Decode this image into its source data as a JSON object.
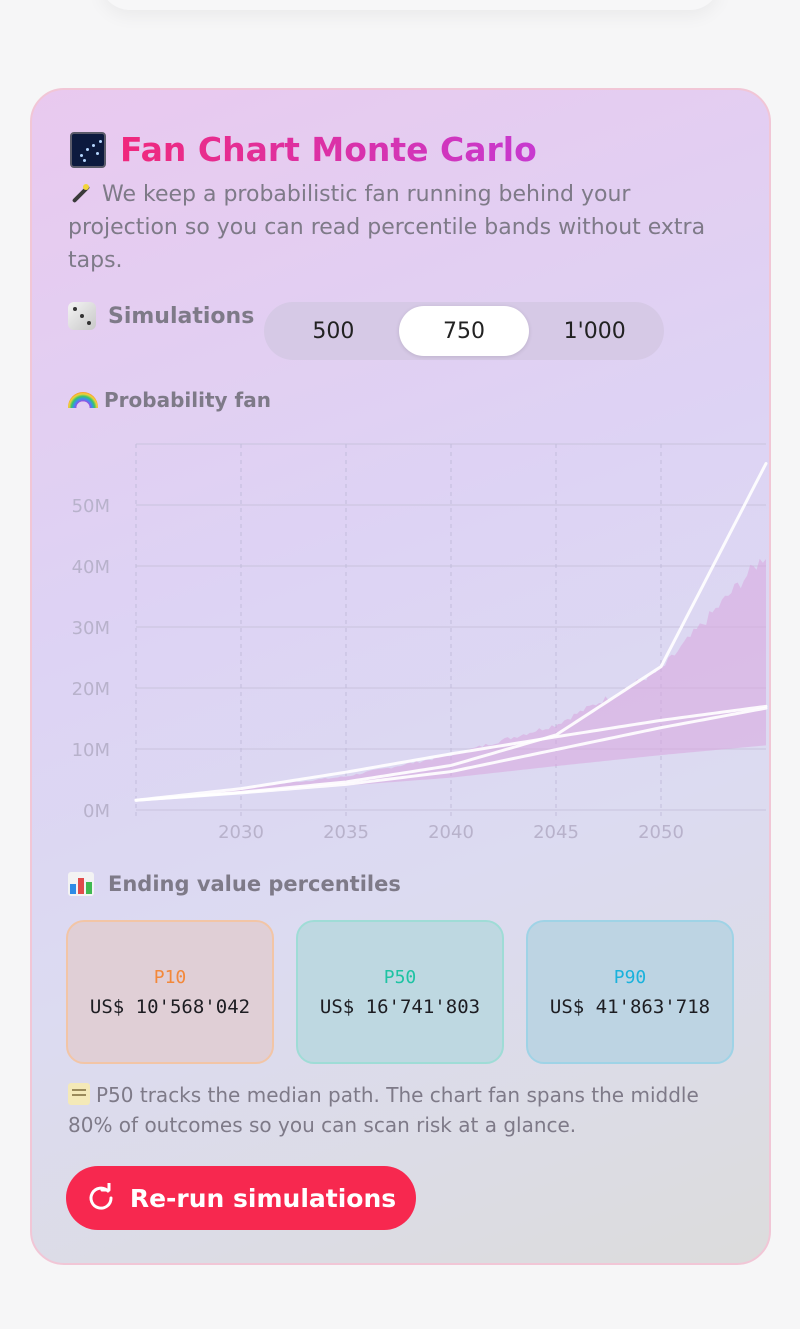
{
  "header": {
    "title": "Fan Chart Monte Carlo",
    "subtitle": "We keep a probabilistic fan running behind your projection so you can read percentile bands without extra taps.",
    "title_icon": "milky-way-icon",
    "subtitle_icon": "magic-wand-icon"
  },
  "simulations": {
    "label": "Simulations",
    "icon": "dice-icon",
    "options": [
      "500",
      "750",
      "1'000"
    ],
    "selected": "750"
  },
  "fan_section": {
    "label": "Probability fan",
    "icon": "rainbow-icon"
  },
  "chart_data": {
    "type": "area",
    "title": "",
    "xlabel": "",
    "ylabel": "",
    "x_ticks": [
      "2030",
      "2035",
      "2040",
      "2045",
      "2050"
    ],
    "y_ticks": [
      "0M",
      "10M",
      "20M",
      "30M",
      "40M",
      "50M"
    ],
    "xlim": [
      2025,
      2055
    ],
    "ylim": [
      0,
      60
    ],
    "y_unit": "M",
    "grid": true,
    "x": [
      2025,
      2030,
      2035,
      2040,
      2045,
      2050,
      2055
    ],
    "series": [
      {
        "role": "band",
        "lower": [
          1.6,
          2.7,
          4.0,
          5.3,
          7.2,
          9.0,
          10.6
        ],
        "upper": [
          1.6,
          3.6,
          5.5,
          9.0,
          14.0,
          23.0,
          41.9
        ],
        "color": "#d9a6df"
      },
      {
        "role": "line",
        "values": [
          1.6,
          3.5,
          6.2,
          9.2,
          12.0,
          14.7,
          17.0
        ],
        "color": "#ffffff"
      },
      {
        "role": "line",
        "values": [
          1.6,
          2.9,
          4.6,
          7.3,
          12.3,
          23.5,
          56.8
        ],
        "color": "#ffffff"
      },
      {
        "role": "line",
        "values": [
          1.6,
          2.8,
          4.2,
          6.3,
          9.9,
          13.5,
          16.7
        ],
        "color": "#ffffff"
      }
    ]
  },
  "percentiles_section": {
    "label": "Ending value percentiles",
    "icon": "bar-chart-icon"
  },
  "percentiles": [
    {
      "label": "P10",
      "value": "US$ 10'568'042",
      "color": "#f3883a",
      "bg": "#e0cfd6",
      "border": "#f2c5a6"
    },
    {
      "label": "P50",
      "value": "US$ 16'741'803",
      "color": "#1ec3a3",
      "bg": "#bed8e1",
      "border": "#9fdcd6"
    },
    {
      "label": "P90",
      "value": "US$ 41'863'718",
      "color": "#1ab2dc",
      "bg": "#bdd4e3",
      "border": "#9fd3e6"
    }
  ],
  "note": "P50 tracks the median path. The chart fan spans the middle 80% of outcomes so you can scan risk at a glance.",
  "note_icon": "memo-icon",
  "rerun_button": {
    "label": "Re-run simulations",
    "icon": "refresh-icon"
  }
}
